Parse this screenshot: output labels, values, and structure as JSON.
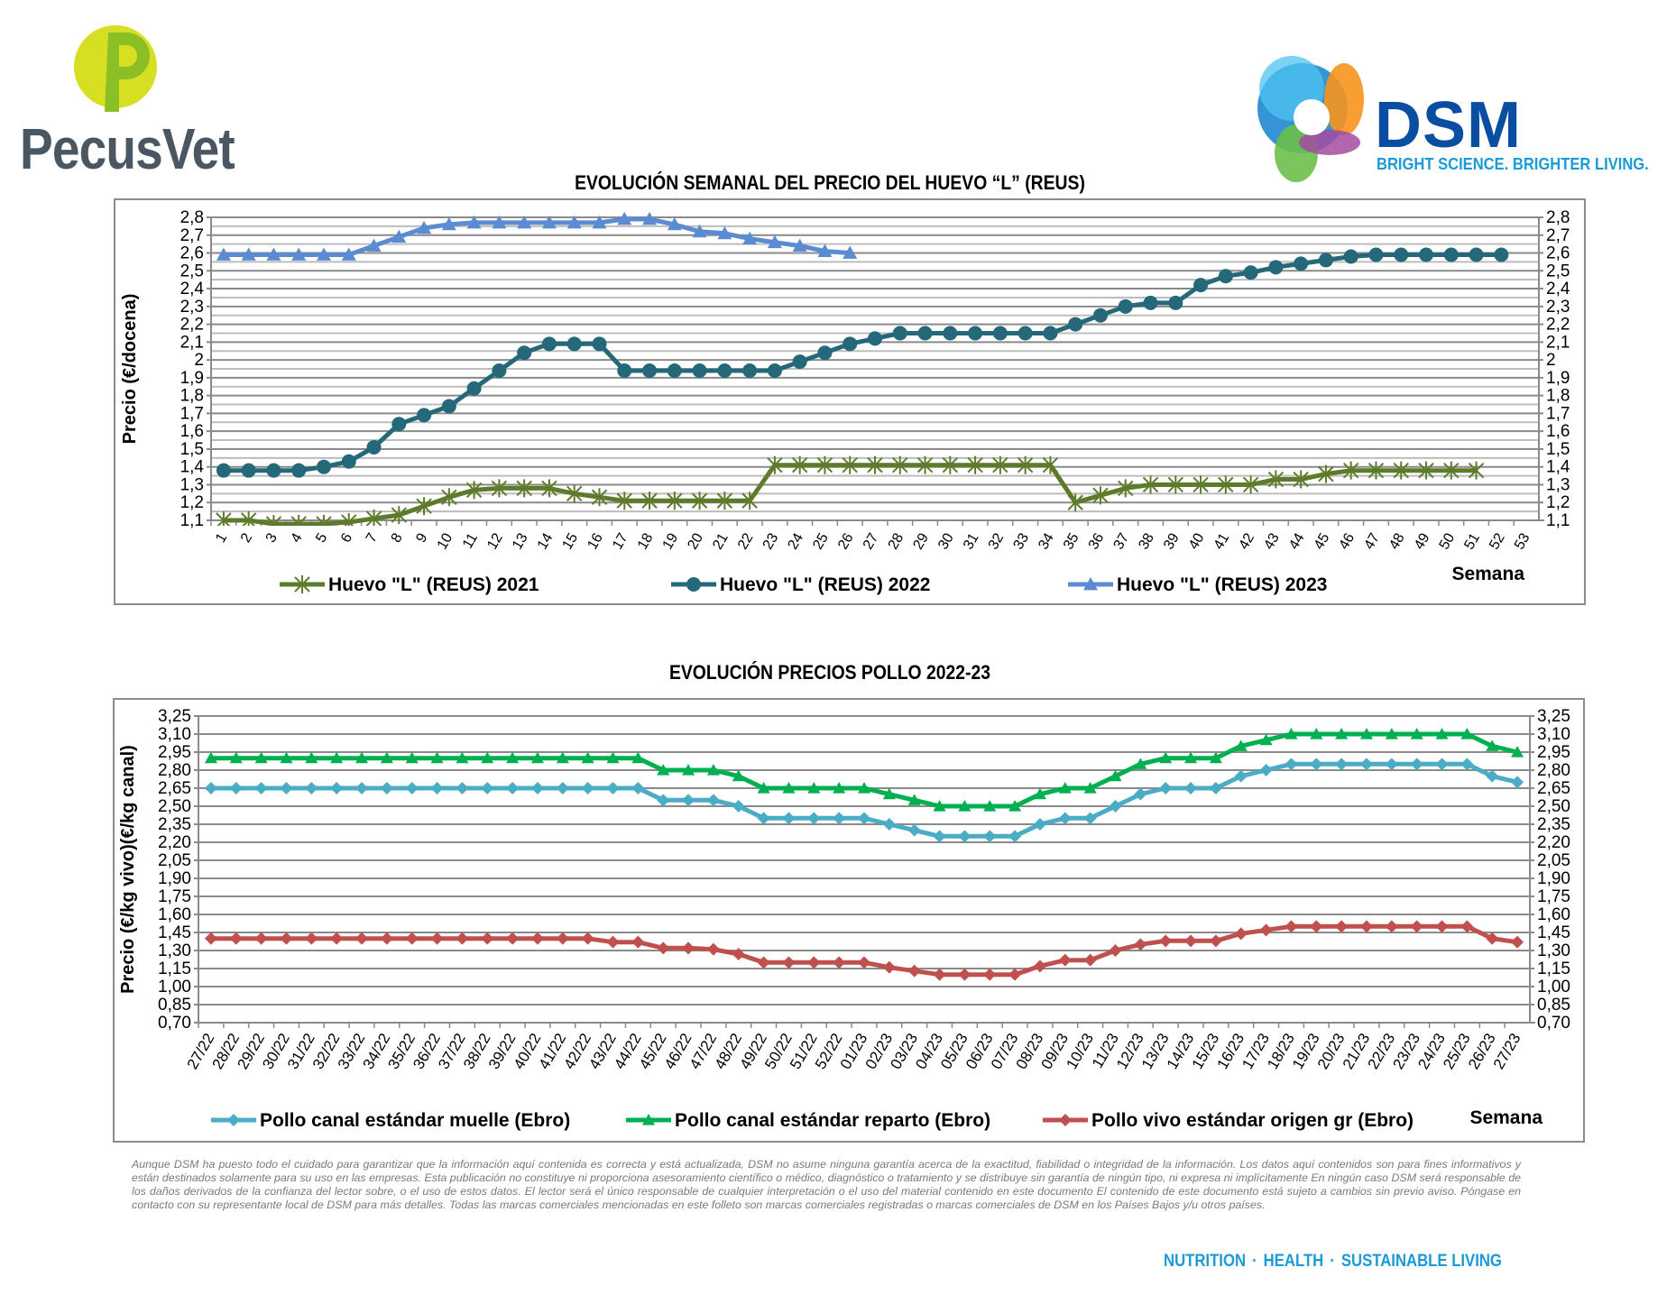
{
  "logos": {
    "pecusvet": "PecusVet",
    "dsm": "DSM",
    "dsm_tagline": "BRIGHT SCIENCE. BRIGHTER LIVING."
  },
  "chart_data": [
    {
      "type": "line",
      "title": "EVOLUCIÓN SEMANAL DEL PRECIO DEL HUEVO “L” (REUS)",
      "ylabel": "Precio (€/docena)",
      "xlabel": "Semana",
      "ylim": [
        1.1,
        2.8
      ],
      "yticks": [
        1.1,
        1.2,
        1.3,
        1.4,
        1.5,
        1.6,
        1.7,
        1.8,
        1.9,
        2.0,
        2.1,
        2.2,
        2.3,
        2.4,
        2.5,
        2.6,
        2.7,
        2.8
      ],
      "ytick_labels": [
        "1,1",
        "1,2",
        "1,3",
        "1,4",
        "1,5",
        "1,6",
        "1,7",
        "1,8",
        "1,9",
        "2",
        "2,1",
        "2,2",
        "2,3",
        "2,4",
        "2,5",
        "2,6",
        "2,7",
        "2,8"
      ],
      "minor_grid_step": 0.05,
      "grid": true,
      "legend_position": "bottom",
      "categories": [
        "1",
        "2",
        "3",
        "4",
        "5",
        "6",
        "7",
        "8",
        "9",
        "10",
        "11",
        "12",
        "13",
        "14",
        "15",
        "16",
        "17",
        "18",
        "19",
        "20",
        "21",
        "22",
        "23",
        "24",
        "25",
        "26",
        "27",
        "28",
        "29",
        "30",
        "31",
        "32",
        "33",
        "34",
        "35",
        "36",
        "37",
        "38",
        "39",
        "40",
        "41",
        "42",
        "43",
        "44",
        "45",
        "46",
        "47",
        "48",
        "49",
        "50",
        "51",
        "52",
        "53"
      ],
      "series": [
        {
          "name": "Huevo \"L\" (REUS) 2021",
          "color": "#5e7b2b",
          "marker": "star",
          "values": [
            1.1,
            1.1,
            1.08,
            1.08,
            1.08,
            1.09,
            1.11,
            1.13,
            1.18,
            1.23,
            1.27,
            1.28,
            1.28,
            1.28,
            1.25,
            1.23,
            1.21,
            1.21,
            1.21,
            1.21,
            1.21,
            1.21,
            1.41,
            1.41,
            1.41,
            1.41,
            1.41,
            1.41,
            1.41,
            1.41,
            1.41,
            1.41,
            1.41,
            1.41,
            1.2,
            1.24,
            1.28,
            1.3,
            1.3,
            1.3,
            1.3,
            1.3,
            1.33,
            1.33,
            1.36,
            1.38,
            1.38,
            1.38,
            1.38,
            1.38,
            1.38,
            null,
            null
          ]
        },
        {
          "name": "Huevo \"L\" (REUS) 2022",
          "color": "#24687a",
          "marker": "circle",
          "values": [
            1.38,
            1.38,
            1.38,
            1.38,
            1.4,
            1.43,
            1.51,
            1.64,
            1.69,
            1.74,
            1.84,
            1.94,
            2.04,
            2.09,
            2.09,
            2.09,
            1.94,
            1.94,
            1.94,
            1.94,
            1.94,
            1.94,
            1.94,
            1.99,
            2.04,
            2.09,
            2.12,
            2.15,
            2.15,
            2.15,
            2.15,
            2.15,
            2.15,
            2.15,
            2.2,
            2.25,
            2.3,
            2.32,
            2.32,
            2.42,
            2.47,
            2.49,
            2.52,
            2.54,
            2.56,
            2.58,
            2.59,
            2.59,
            2.59,
            2.59,
            2.59,
            2.59,
            null
          ]
        },
        {
          "name": "Huevo \"L\" (REUS) 2023",
          "color": "#5b8bd0",
          "marker": "triangle",
          "values": [
            2.59,
            2.59,
            2.59,
            2.59,
            2.59,
            2.59,
            2.64,
            2.69,
            2.74,
            2.76,
            2.77,
            2.77,
            2.77,
            2.77,
            2.77,
            2.77,
            2.79,
            2.79,
            2.76,
            2.72,
            2.71,
            2.68,
            2.66,
            2.64,
            2.61,
            2.6,
            null,
            null,
            null,
            null,
            null,
            null,
            null,
            null,
            null,
            null,
            null,
            null,
            null,
            null,
            null,
            null,
            null,
            null,
            null,
            null,
            null,
            null,
            null,
            null,
            null,
            null,
            null
          ]
        }
      ]
    },
    {
      "type": "line",
      "title": "EVOLUCIÓN PRECIOS POLLO 2022-23",
      "ylabel": "Precio (€/kg vivo)(€/kg canal)",
      "xlabel": "Semana",
      "ylim": [
        0.7,
        3.25
      ],
      "yticks": [
        0.7,
        0.85,
        1.0,
        1.15,
        1.3,
        1.45,
        1.6,
        1.75,
        1.9,
        2.05,
        2.2,
        2.35,
        2.5,
        2.65,
        2.8,
        2.95,
        3.1,
        3.25
      ],
      "ytick_labels": [
        "0,70",
        "0,85",
        "1,00",
        "1,15",
        "1,30",
        "1,45",
        "1,60",
        "1,75",
        "1,90",
        "2,05",
        "2,20",
        "2,35",
        "2,50",
        "2,65",
        "2,80",
        "2,95",
        "3,10",
        "3,25"
      ],
      "grid": true,
      "legend_position": "bottom",
      "categories": [
        "27/22",
        "28/22",
        "29/22",
        "30/22",
        "31/22",
        "32/22",
        "33/22",
        "34/22",
        "35/22",
        "36/22",
        "37/22",
        "38/22",
        "39/22",
        "40/22",
        "41/22",
        "42/22",
        "43/22",
        "44/22",
        "45/22",
        "46/22",
        "47/22",
        "48/22",
        "49/22",
        "50/22",
        "51/22",
        "52/22",
        "01/23",
        "02/23",
        "03/23",
        "04/23",
        "05/23",
        "06/23",
        "07/23",
        "08/23",
        "09/23",
        "10/23",
        "11/23",
        "12/23",
        "13/23",
        "14/23",
        "15/23",
        "16/23",
        "17/23",
        "18/23",
        "19/23",
        "20/23",
        "21/23",
        "22/23",
        "23/23",
        "24/23",
        "25/23",
        "26/23",
        "27/23"
      ],
      "series": [
        {
          "name": "Pollo canal estándar muelle (Ebro)",
          "color": "#4bacc6",
          "marker": "diamond",
          "values": [
            2.65,
            2.65,
            2.65,
            2.65,
            2.65,
            2.65,
            2.65,
            2.65,
            2.65,
            2.65,
            2.65,
            2.65,
            2.65,
            2.65,
            2.65,
            2.65,
            2.65,
            2.65,
            2.55,
            2.55,
            2.55,
            2.5,
            2.4,
            2.4,
            2.4,
            2.4,
            2.4,
            2.35,
            2.3,
            2.25,
            2.25,
            2.25,
            2.25,
            2.35,
            2.4,
            2.4,
            2.5,
            2.6,
            2.65,
            2.65,
            2.65,
            2.75,
            2.8,
            2.85,
            2.85,
            2.85,
            2.85,
            2.85,
            2.85,
            2.85,
            2.85,
            2.75,
            2.7
          ]
        },
        {
          "name": "Pollo canal estándar reparto (Ebro)",
          "color": "#00b050",
          "marker": "triangle",
          "values": [
            2.9,
            2.9,
            2.9,
            2.9,
            2.9,
            2.9,
            2.9,
            2.9,
            2.9,
            2.9,
            2.9,
            2.9,
            2.9,
            2.9,
            2.9,
            2.9,
            2.9,
            2.9,
            2.8,
            2.8,
            2.8,
            2.75,
            2.65,
            2.65,
            2.65,
            2.65,
            2.65,
            2.6,
            2.55,
            2.5,
            2.5,
            2.5,
            2.5,
            2.6,
            2.65,
            2.65,
            2.75,
            2.85,
            2.9,
            2.9,
            2.9,
            3.0,
            3.05,
            3.1,
            3.1,
            3.1,
            3.1,
            3.1,
            3.1,
            3.1,
            3.1,
            3.0,
            2.95
          ]
        },
        {
          "name": "Pollo vivo estándar origen gr (Ebro)",
          "color": "#c0504d",
          "marker": "diamond",
          "values": [
            1.4,
            1.4,
            1.4,
            1.4,
            1.4,
            1.4,
            1.4,
            1.4,
            1.4,
            1.4,
            1.4,
            1.4,
            1.4,
            1.4,
            1.4,
            1.4,
            1.37,
            1.37,
            1.32,
            1.32,
            1.31,
            1.27,
            1.2,
            1.2,
            1.2,
            1.2,
            1.2,
            1.16,
            1.13,
            1.1,
            1.1,
            1.1,
            1.1,
            1.17,
            1.22,
            1.22,
            1.3,
            1.35,
            1.38,
            1.38,
            1.38,
            1.44,
            1.47,
            1.5,
            1.5,
            1.5,
            1.5,
            1.5,
            1.5,
            1.5,
            1.5,
            1.4,
            1.37
          ]
        }
      ]
    }
  ],
  "disclaimer": "Aunque DSM ha puesto todo el cuidado para garantizar que la información aquí contenida es correcta y está actualizada, DSM no asume ninguna garantía acerca de la exactitud, fiabilidad o integridad de la información. Los datos aquí contenidos son para fines informativos y están destinados solamente para su uso en las empresas. Esta publicación no constituye ni proporciona asesoramiento científico o médico, diagnóstico o tratamiento y se distribuye sin garantía de ningún tipo, ni expresa ni implícitamente En ningún caso DSM será responsable de los daños derivados de la confianza del lector sobre, o el uso de estos datos. El lector será el único responsable de cualquier interpretación o el uso del material contenido en este documento El contenido de este documento está sujeto a cambios sin previo aviso. Póngase en contacto con su representante local de DSM para más detalles. Todas las marcas comerciales mencionadas en este folleto son marcas comerciales registradas o marcas comerciales de DSM en los Países Bajos y/u otros países.",
  "footer": {
    "items": [
      "NUTRITION",
      "HEALTH",
      "SUSTAINABLE LIVING"
    ],
    "separator": "·"
  }
}
